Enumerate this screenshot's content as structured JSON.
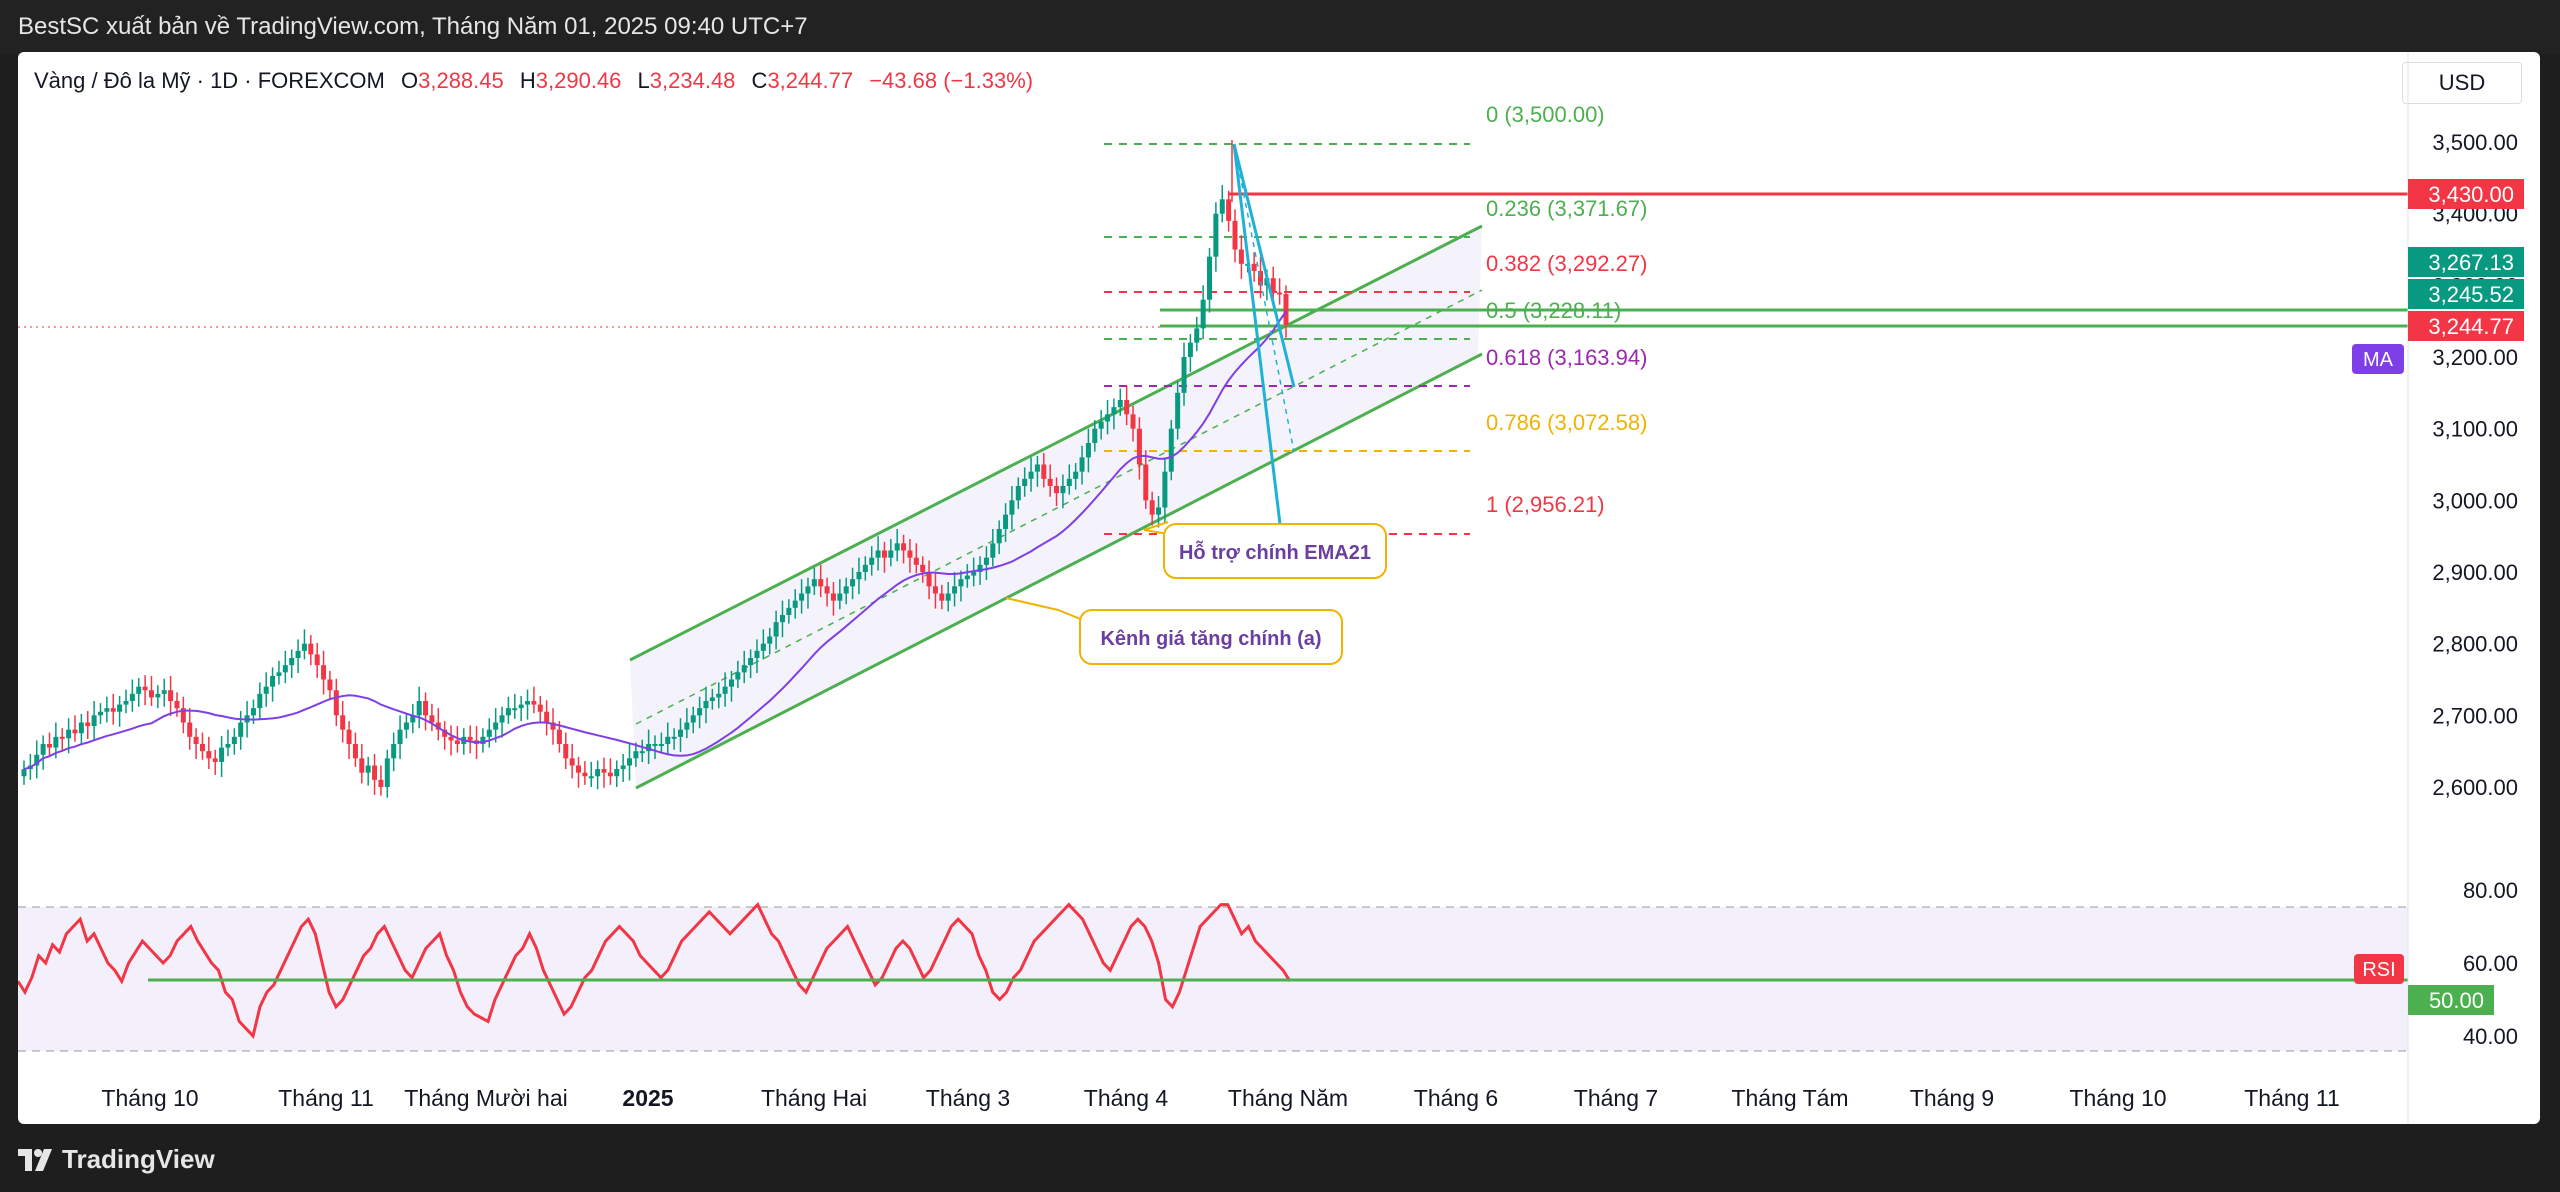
{
  "header": {
    "publisher_line": "BestSC xuất bản về TradingView.com, Tháng Năm 01, 2025 09:40 UTC+7"
  },
  "legend": {
    "symbol": "Vàng / Đô la Mỹ · 1D · FOREXCOM",
    "open_label": "O",
    "open": "3,288.45",
    "high_label": "H",
    "high": "3,290.46",
    "low_label": "L",
    "low": "3,234.48",
    "close_label": "C",
    "close": "3,244.77",
    "change": "−43.68 (−1.33%)"
  },
  "currency": "USD",
  "footer": {
    "brand": "TradingView"
  },
  "colors": {
    "up": "#089981",
    "down": "#f23645",
    "ma": "#7e3fe8",
    "channel": "#4caf50",
    "fib_up": "#4caf50",
    "fib_down": "#f23645",
    "fib_618": "#9c27b0",
    "fib_786": "#f0b400",
    "rsi": "#f23645",
    "callout_border": "#f0b400",
    "callout_text": "#6b3fa0"
  },
  "chart_data": [
    {
      "type": "candlestick",
      "title": "Vàng / Đô la Mỹ · 1D · FOREXCOM",
      "x_ticks": [
        "Tháng 10",
        "Tháng 11",
        "Tháng Mười hai",
        "2025",
        "Tháng Hai",
        "Tháng 3",
        "Tháng 4",
        "Tháng Năm",
        "Tháng 6",
        "Tháng 7",
        "Tháng Tám",
        "Tháng 9",
        "Tháng 10",
        "Tháng 11"
      ],
      "y_ticks": [
        "3,500.00",
        "3,400.00",
        "3,300.00",
        "3,200.00",
        "3,100.00",
        "3,000.00",
        "2,900.00",
        "2,800.00",
        "2,700.00",
        "2,600.00"
      ],
      "ylim": [
        2580,
        3560
      ],
      "close_series": [
        2625,
        2630,
        2645,
        2660,
        2655,
        2670,
        2668,
        2680,
        2675,
        2690,
        2685,
        2700,
        2705,
        2710,
        2705,
        2715,
        2720,
        2730,
        2740,
        2735,
        2725,
        2730,
        2735,
        2720,
        2710,
        2690,
        2670,
        2660,
        2650,
        2640,
        2635,
        2655,
        2660,
        2670,
        2690,
        2700,
        2710,
        2730,
        2740,
        2755,
        2760,
        2770,
        2780,
        2790,
        2800,
        2785,
        2770,
        2750,
        2735,
        2700,
        2680,
        2660,
        2640,
        2620,
        2630,
        2610,
        2600,
        2640,
        2660,
        2680,
        2690,
        2700,
        2720,
        2700,
        2690,
        2680,
        2670,
        2665,
        2660,
        2670,
        2665,
        2660,
        2670,
        2680,
        2690,
        2700,
        2710,
        2710,
        2715,
        2720,
        2715,
        2705,
        2690,
        2680,
        2660,
        2640,
        2630,
        2620,
        2615,
        2615,
        2625,
        2620,
        2615,
        2625,
        2630,
        2640,
        2650,
        2650,
        2660,
        2660,
        2660,
        2670,
        2670,
        2680,
        2690,
        2700,
        2710,
        2720,
        2725,
        2730,
        2740,
        2750,
        2760,
        2770,
        2780,
        2790,
        2800,
        2810,
        2830,
        2840,
        2850,
        2860,
        2870,
        2880,
        2890,
        2880,
        2870,
        2860,
        2870,
        2880,
        2890,
        2900,
        2910,
        2920,
        2930,
        2920,
        2930,
        2940,
        2930,
        2920,
        2910,
        2900,
        2880,
        2870,
        2860,
        2870,
        2880,
        2890,
        2895,
        2900,
        2910,
        2920,
        2940,
        2960,
        2980,
        3000,
        3020,
        3030,
        3040,
        3050,
        3030,
        3020,
        3010,
        3020,
        3030,
        3040,
        3060,
        3080,
        3100,
        3110,
        3120,
        3130,
        3140,
        3120,
        3100,
        3050,
        3000,
        2980,
        2990,
        3040,
        3100,
        3150,
        3200,
        3220,
        3240,
        3280,
        3340,
        3400,
        3420,
        3390,
        3350,
        3330,
        3330,
        3320,
        3300,
        3310,
        3290,
        3288,
        3245
      ],
      "channel": {
        "upper": [
          [
            2688,
            3020
          ],
          [
            3371,
            3365
          ]
        ],
        "lower": [
          [
            2600,
            2688
          ],
          [
            3200,
            3523
          ]
        ],
        "label": "Kênh giá tăng chính (a)"
      },
      "horizontal_levels": [
        {
          "value": 3430.0,
          "label": "3,430.00",
          "color": "#f23645"
        },
        {
          "value": 3267.13,
          "label": "3,267.13",
          "color": "#089981"
        },
        {
          "value": 3245.52,
          "label": "3,245.52",
          "color": "#089981"
        },
        {
          "value": 3244.77,
          "label": "3,244.77",
          "color": "#f23645"
        }
      ],
      "fibonacci": [
        {
          "ratio": "0",
          "value": 3500.0,
          "label": "0 (3,500.00)",
          "color": "#4caf50"
        },
        {
          "ratio": "0.236",
          "value": 3371.67,
          "label": "0.236 (3,371.67)",
          "color": "#4caf50"
        },
        {
          "ratio": "0.382",
          "value": 3292.27,
          "label": "0.382 (3,292.27)",
          "color": "#f23645"
        },
        {
          "ratio": "0.5",
          "value": 3228.11,
          "label": "0.5 (3,228.11)",
          "color": "#4caf50"
        },
        {
          "ratio": "0.618",
          "value": 3163.94,
          "label": "0.618 (3,163.94)",
          "color": "#9c27b0"
        },
        {
          "ratio": "0.786",
          "value": 3072.58,
          "label": "0.786 (3,072.58)",
          "color": "#f0b400"
        },
        {
          "ratio": "1",
          "value": 2956.21,
          "label": "1 (2,956.21)",
          "color": "#f23645"
        }
      ],
      "annotations": [
        "Hỗ trợ chính EMA21",
        "Kênh giá tăng chính (a)"
      ],
      "indicator_badges": [
        "MA"
      ]
    },
    {
      "type": "line",
      "title": "",
      "series": [
        {
          "name": "RSI",
          "values": [
            55,
            52,
            56,
            62,
            60,
            65,
            63,
            68,
            70,
            72,
            66,
            68,
            64,
            60,
            58,
            55,
            60,
            63,
            66,
            64,
            62,
            60,
            62,
            66,
            68,
            70,
            66,
            63,
            60,
            58,
            52,
            50,
            44,
            42,
            40,
            48,
            52,
            54,
            58,
            62,
            66,
            70,
            72,
            68,
            60,
            52,
            48,
            50,
            54,
            58,
            62,
            64,
            68,
            70,
            66,
            62,
            58,
            56,
            60,
            64,
            66,
            68,
            62,
            58,
            52,
            48,
            46,
            45,
            44,
            50,
            54,
            58,
            62,
            64,
            68,
            64,
            58,
            54,
            50,
            46,
            48,
            52,
            56,
            58,
            62,
            66,
            68,
            70,
            68,
            66,
            62,
            60,
            58,
            56,
            58,
            62,
            66,
            68,
            70,
            72,
            74,
            72,
            70,
            68,
            70,
            72,
            74,
            76,
            72,
            68,
            66,
            62,
            58,
            54,
            52,
            56,
            60,
            64,
            66,
            68,
            70,
            66,
            62,
            58,
            54,
            56,
            60,
            64,
            66,
            64,
            60,
            56,
            58,
            62,
            66,
            70,
            72,
            70,
            68,
            62,
            58,
            52,
            50,
            52,
            56,
            58,
            62,
            66,
            68,
            70,
            72,
            74,
            76,
            74,
            72,
            68,
            64,
            60,
            58,
            62,
            66,
            70,
            72,
            70,
            66,
            60,
            50,
            48,
            52,
            58,
            64,
            70,
            72,
            74,
            76,
            76,
            72,
            68,
            70,
            66,
            64,
            62,
            60,
            58,
            55
          ]
        }
      ],
      "y_ticks": [
        "80.00",
        "60.00",
        "40.00"
      ],
      "levels": [
        {
          "value": 50.0,
          "label": "50.00"
        }
      ],
      "ylim": [
        25,
        90
      ],
      "badge": "RSI"
    }
  ]
}
